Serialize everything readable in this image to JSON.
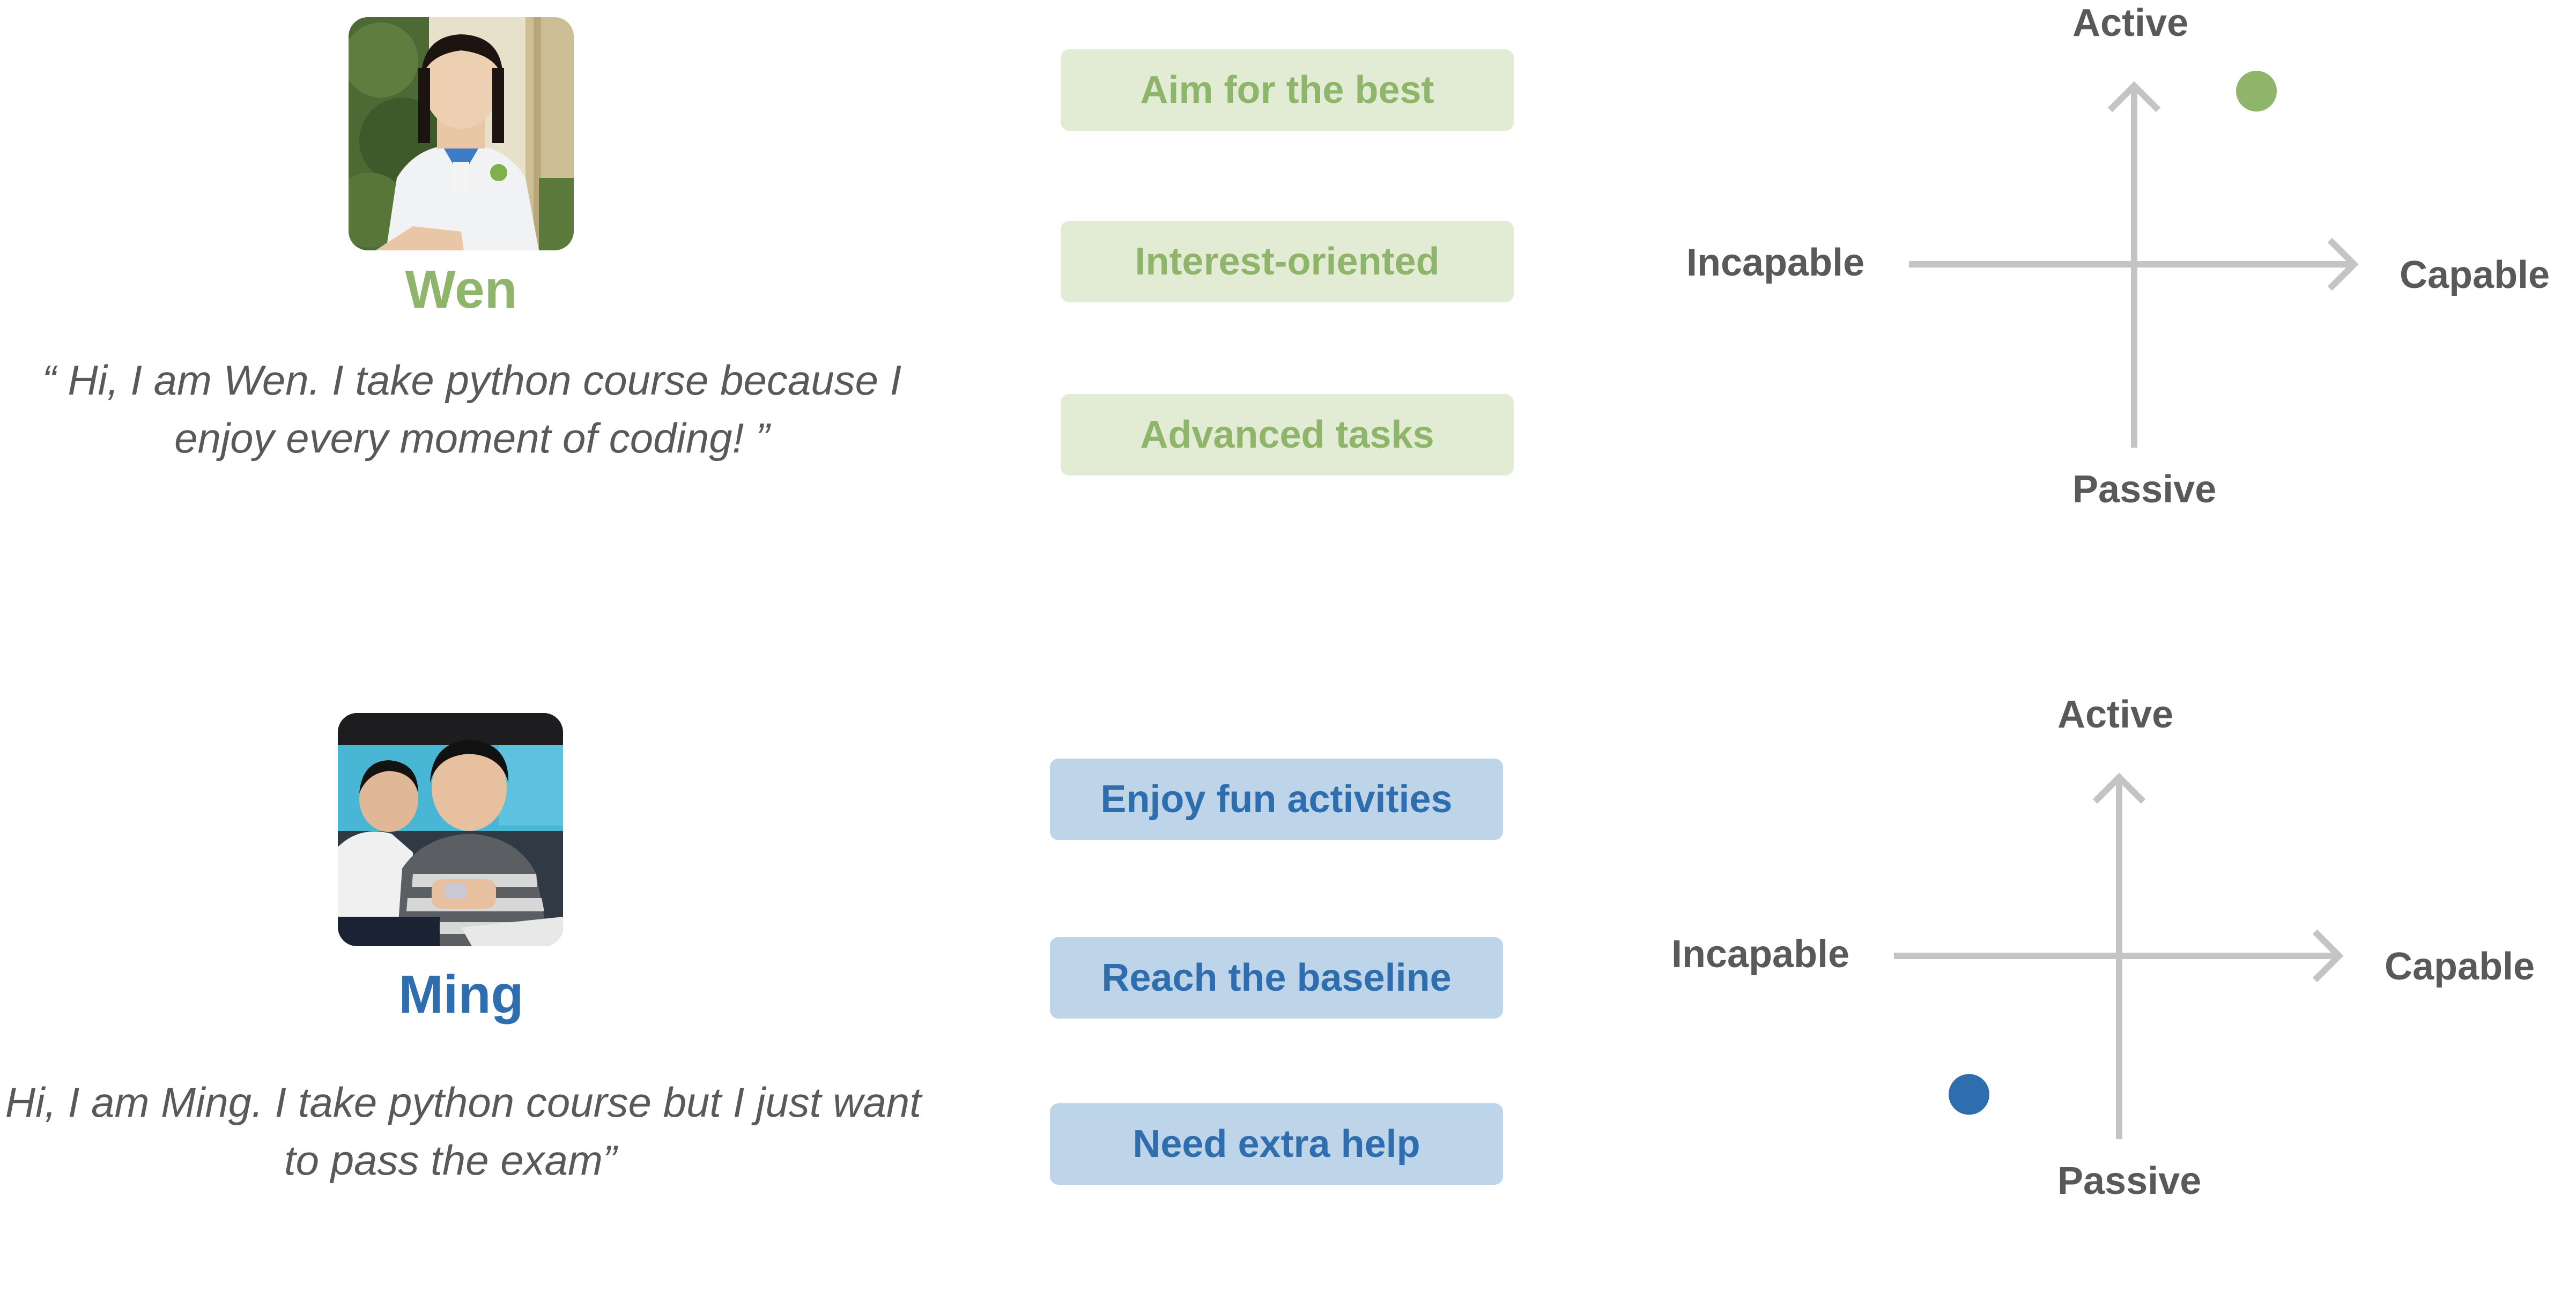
{
  "personas": [
    {
      "name": "Wen",
      "quote": "“ Hi, I am Wen. I take python course because I enjoy every moment of coding! ”",
      "traits": [
        "Aim for the best",
        "Interest-oriented",
        "Advanced tasks"
      ],
      "accent": "#8fb56a",
      "tag_bg": "#e2ecd5",
      "quadrant": {
        "top": "Active",
        "bottom": "Passive",
        "left": "Incapable",
        "right": "Capable",
        "point": {
          "capability": 0.57,
          "activity": 0.85
        }
      }
    },
    {
      "name": "Ming",
      "quote": "“ Hi, I am Ming. I take python course but I just want to pass the exam”",
      "traits": [
        "Enjoy fun activities",
        "Reach the baseline",
        "Need extra help"
      ],
      "accent": "#2f6eae",
      "tag_bg": "#bed4e8",
      "quadrant": {
        "top": "Active",
        "bottom": "Passive",
        "left": "Incapable",
        "right": "Capable",
        "point": {
          "capability": -0.7,
          "activity": -0.68
        }
      }
    }
  ]
}
